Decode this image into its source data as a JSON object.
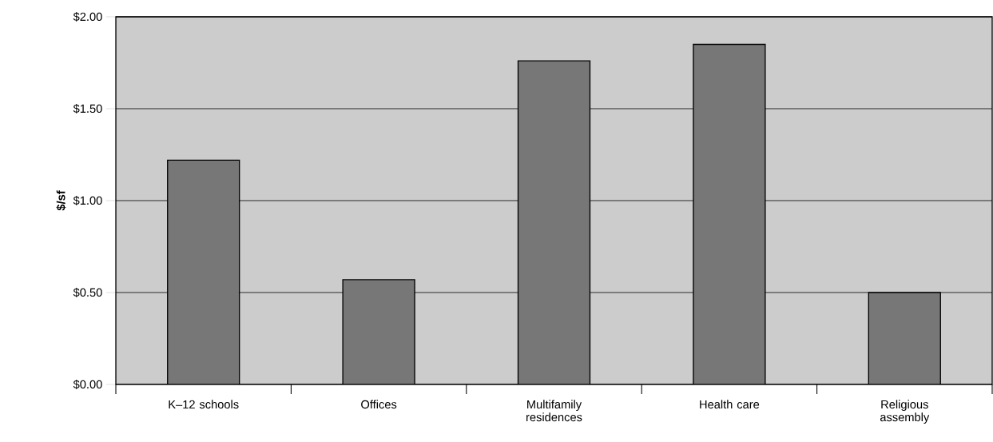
{
  "chart_data": {
    "type": "bar",
    "ylabel": "$/sf",
    "categories": [
      "K–12 schools",
      "Offices",
      "Multifamily residences",
      "Health care",
      "Religious assembly"
    ],
    "values": [
      1.22,
      0.57,
      1.76,
      1.85,
      0.5
    ],
    "color": "#777777",
    "ylim": [
      0,
      2
    ],
    "yticks": [
      {
        "value": 0,
        "label": "$0.00"
      },
      {
        "value": 0.5,
        "label": "$0.50"
      },
      {
        "value": 1,
        "label": "$1.00"
      },
      {
        "value": 1.5,
        "label": "$1.50"
      },
      {
        "value": 2,
        "label": "$2.00"
      }
    ],
    "grid": "y"
  }
}
